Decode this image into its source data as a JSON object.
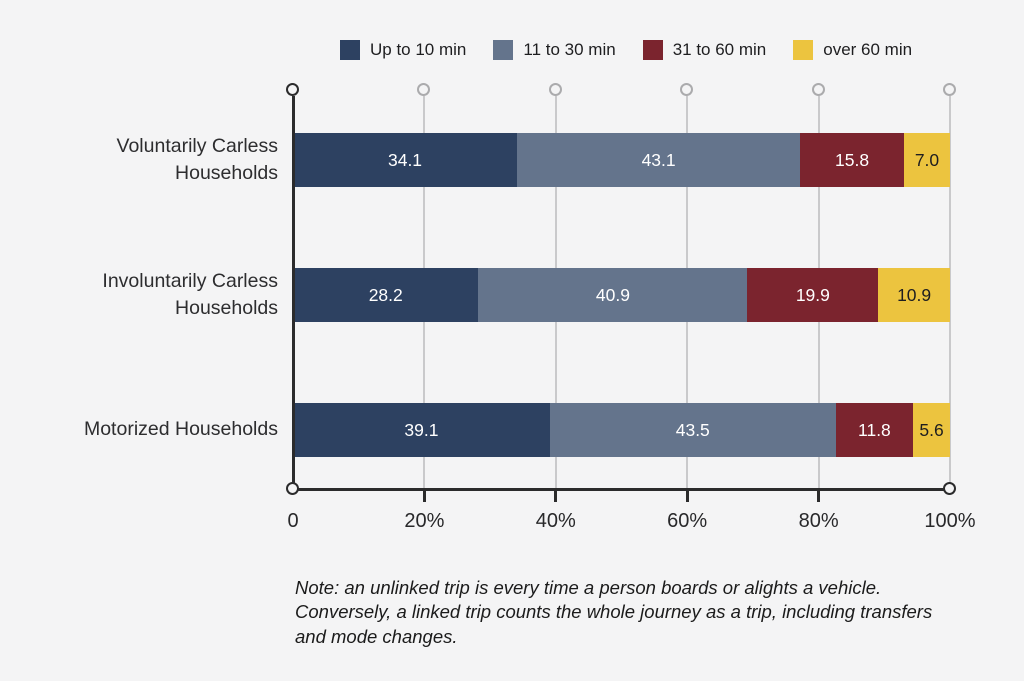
{
  "background_color": "#f4f4f5",
  "chart_data": {
    "type": "bar",
    "variant": "horizontal-stacked",
    "title": "",
    "categories": [
      "Voluntarily Carless Households",
      "Involuntarily Carless Households",
      "Motorized Households"
    ],
    "category_label_lines": [
      [
        "Voluntarily Carless",
        "Households"
      ],
      [
        "Involuntarily Carless",
        "Households"
      ],
      [
        "Motorized Households"
      ]
    ],
    "series": [
      {
        "name": "Up to 10 min",
        "color": "#2d4161",
        "text_color": "#ffffff",
        "values": [
          34.1,
          28.2,
          39.1
        ],
        "labels": [
          "34.1",
          "28.2",
          "39.1"
        ]
      },
      {
        "name": "11 to 30 min",
        "color": "#64748c",
        "text_color": "#ffffff",
        "values": [
          43.1,
          40.9,
          43.5
        ],
        "labels": [
          "43.1",
          "40.9",
          "43.5"
        ]
      },
      {
        "name": "31 to 60 min",
        "color": "#7b242e",
        "text_color": "#ffffff",
        "values": [
          15.8,
          19.9,
          11.8
        ],
        "labels": [
          "15.8",
          "19.9",
          "11.8"
        ]
      },
      {
        "name": "over 60 min",
        "color": "#ecc43f",
        "text_color": "#1e1e20",
        "values": [
          7.0,
          10.9,
          5.6
        ],
        "labels": [
          "7.0",
          "10.9",
          "5.6"
        ]
      }
    ],
    "x_axis": {
      "range": [
        0,
        100
      ],
      "tick_values": [
        0,
        20,
        40,
        60,
        80,
        100
      ],
      "tick_labels": [
        "0",
        "20%",
        "40%",
        "60%",
        "80%",
        "100%"
      ]
    },
    "legend_position": "top",
    "grid": true,
    "grid_color": "#c9c9cb",
    "axis_color": "#2b2b2c"
  },
  "note_lines": [
    "Note: an unlinked trip is every time a person boards or alights a vehicle.",
    "Conversely, a linked trip counts the whole journey as a trip, including transfers",
    "and mode changes."
  ]
}
